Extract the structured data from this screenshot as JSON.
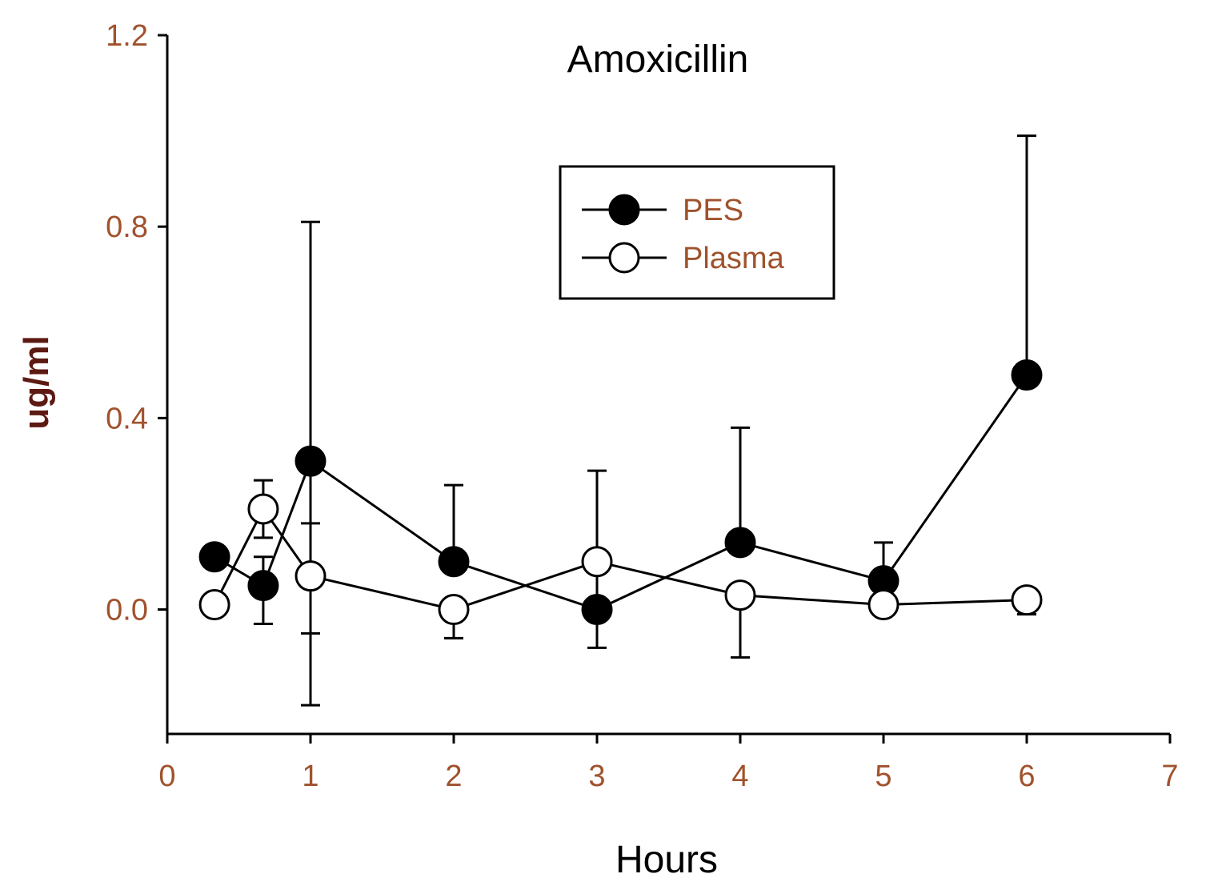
{
  "chart_data": {
    "type": "line",
    "title": "Amoxicillin",
    "xlabel": "Hours",
    "ylabel": "ug/ml",
    "xlim": [
      0,
      7
    ],
    "ylim": [
      -0.26,
      1.2
    ],
    "xticks": [
      "0",
      "1",
      "2",
      "3",
      "4",
      "5",
      "6",
      "7"
    ],
    "yticks": [
      "0.0",
      "0.4",
      "0.8",
      "1.2"
    ],
    "grid": false,
    "legend_position": "top-right",
    "series": [
      {
        "name": "PES",
        "marker": "filled-circle",
        "x": [
          0.33,
          0.67,
          1,
          2,
          3,
          4,
          5,
          6
        ],
        "y": [
          0.11,
          0.05,
          0.31,
          0.1,
          0.0,
          0.14,
          0.06,
          0.49
        ],
        "err_upper": [
          null,
          0.11,
          0.81,
          0.26,
          0.29,
          0.38,
          0.14,
          0.99
        ],
        "err_lower": [
          null,
          -0.03,
          -0.05,
          null,
          -0.08,
          null,
          null,
          null
        ]
      },
      {
        "name": "Plasma",
        "marker": "open-circle",
        "x": [
          0.33,
          0.67,
          1,
          2,
          3,
          4,
          5,
          6
        ],
        "y": [
          0.01,
          0.21,
          0.07,
          0.0,
          0.1,
          0.03,
          0.01,
          0.02
        ],
        "err_upper": [
          null,
          0.27,
          0.18,
          null,
          null,
          null,
          null,
          null
        ],
        "err_lower": [
          null,
          0.15,
          -0.2,
          -0.06,
          null,
          -0.1,
          null,
          -0.01
        ]
      }
    ]
  }
}
